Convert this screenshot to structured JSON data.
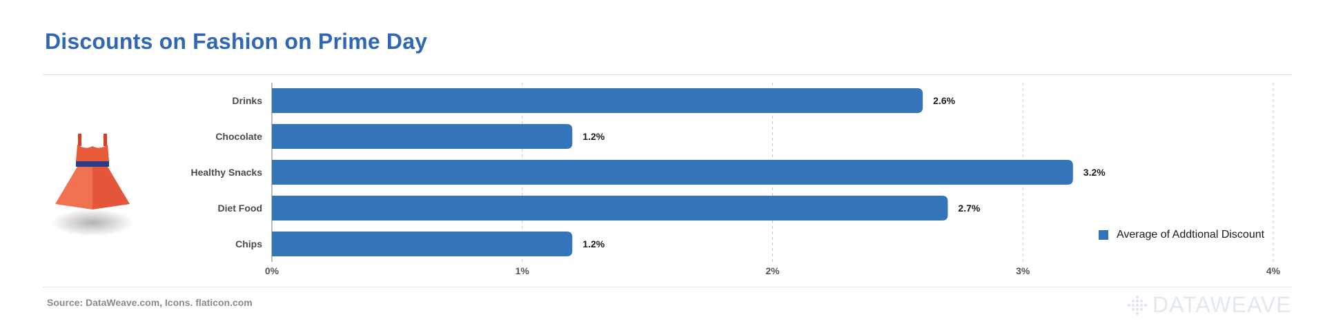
{
  "header": {
    "title": "Discounts on Fashion on Prime Day"
  },
  "chart_data": {
    "type": "bar",
    "orientation": "horizontal",
    "categories": [
      "Drinks",
      "Chocolate",
      "Healthy Snacks",
      "Diet Food",
      "Chips"
    ],
    "series": [
      {
        "name": "Average of Addtional Discount",
        "values": [
          2.6,
          1.2,
          3.2,
          2.7,
          1.2
        ],
        "color": "#3375b8"
      }
    ],
    "value_labels": [
      "2.6%",
      "1.2%",
      "3.2%",
      "2.7%",
      "1.2%"
    ],
    "xlim": [
      0,
      4
    ],
    "x_ticks": [
      0,
      1,
      2,
      3,
      4
    ],
    "x_tick_labels": [
      "0%",
      "1%",
      "2%",
      "3%",
      "4%"
    ],
    "grid": "vertical dashed",
    "legend_position": "right"
  },
  "legend": {
    "label": "Average of Addtional Discount",
    "color": "#3375b8"
  },
  "footer": {
    "source": "Source: DataWeave.com, Icons. flaticon.com",
    "logo_text": "DATAWEAVE"
  },
  "icons": {
    "illustration": "dress-icon",
    "logo": "dataweave-logo-icon"
  }
}
